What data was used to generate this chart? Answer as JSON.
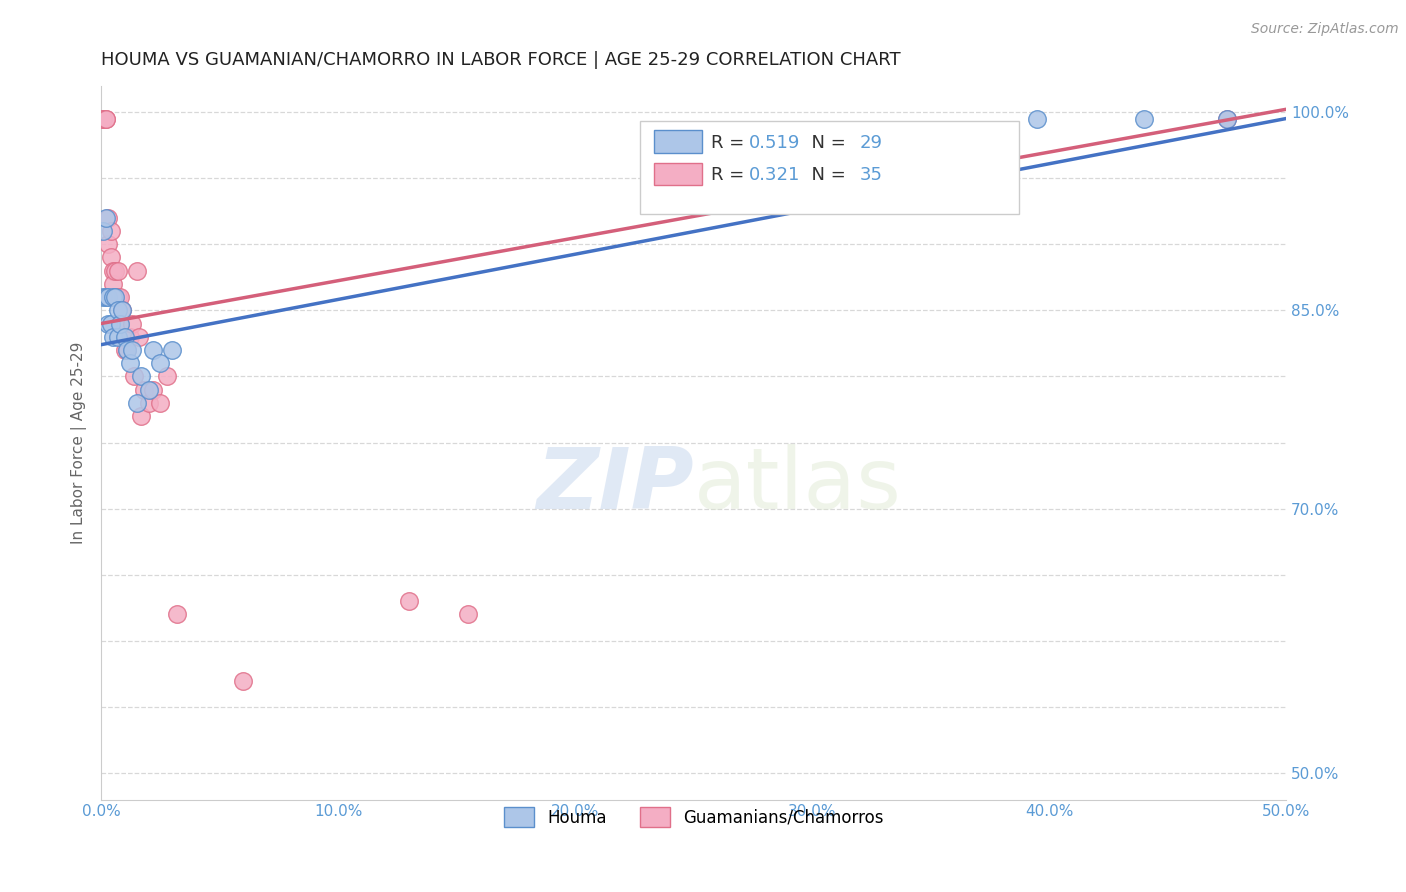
{
  "title": "HOUMA VS GUAMANIAN/CHAMORRO IN LABOR FORCE | AGE 25-29 CORRELATION CHART",
  "source": "Source: ZipAtlas.com",
  "xlabel": "",
  "ylabel": "In Labor Force | Age 25-29",
  "xlim": [
    0.0,
    0.5
  ],
  "ylim": [
    0.48,
    1.02
  ],
  "xticks": [
    0.0,
    0.1,
    0.2,
    0.3,
    0.4,
    0.5
  ],
  "xticklabels": [
    "0.0%",
    "10.0%",
    "20.0%",
    "30.0%",
    "40.0%",
    "50.0%"
  ],
  "yticks": [
    0.5,
    0.55,
    0.6,
    0.65,
    0.7,
    0.75,
    0.8,
    0.85,
    0.9,
    0.95,
    1.0
  ],
  "yticklabels": [
    "50.0%",
    "",
    "",
    "",
    "70.0%",
    "",
    "",
    "85.0%",
    "",
    "",
    "100.0%"
  ],
  "houma_R": 0.519,
  "houma_N": 29,
  "guam_R": 0.321,
  "guam_N": 35,
  "houma_color": "#adc6e8",
  "guam_color": "#f4aec4",
  "houma_edge_color": "#5b8fcc",
  "guam_edge_color": "#e0708a",
  "houma_line_color": "#4472c4",
  "guam_line_color": "#d45f7a",
  "legend_labels": [
    "Houma",
    "Guamanians/Chamorros"
  ],
  "houma_line": [
    0.0,
    0.824,
    0.5,
    0.995
  ],
  "guam_line": [
    0.0,
    0.84,
    0.5,
    1.002
  ],
  "houma_x": [
    0.001,
    0.001,
    0.002,
    0.002,
    0.003,
    0.003,
    0.004,
    0.005,
    0.005,
    0.006,
    0.007,
    0.007,
    0.008,
    0.009,
    0.01,
    0.011,
    0.012,
    0.013,
    0.015,
    0.017,
    0.02,
    0.022,
    0.025,
    0.03,
    0.395,
    0.44,
    0.475
  ],
  "houma_y": [
    0.86,
    0.91,
    0.86,
    0.92,
    0.86,
    0.84,
    0.84,
    0.86,
    0.83,
    0.86,
    0.83,
    0.85,
    0.84,
    0.85,
    0.83,
    0.82,
    0.81,
    0.82,
    0.78,
    0.8,
    0.79,
    0.82,
    0.81,
    0.82,
    0.995,
    0.995,
    0.995
  ],
  "guam_x": [
    0.001,
    0.001,
    0.002,
    0.002,
    0.003,
    0.003,
    0.004,
    0.004,
    0.005,
    0.005,
    0.006,
    0.006,
    0.007,
    0.007,
    0.008,
    0.008,
    0.009,
    0.01,
    0.011,
    0.012,
    0.013,
    0.014,
    0.015,
    0.016,
    0.017,
    0.018,
    0.02,
    0.022,
    0.025,
    0.028,
    0.032,
    0.06,
    0.13,
    0.155,
    0.475
  ],
  "guam_y": [
    0.995,
    0.995,
    0.995,
    0.995,
    0.9,
    0.92,
    0.89,
    0.91,
    0.88,
    0.87,
    0.86,
    0.88,
    0.86,
    0.88,
    0.86,
    0.84,
    0.85,
    0.82,
    0.82,
    0.83,
    0.84,
    0.8,
    0.88,
    0.83,
    0.77,
    0.79,
    0.78,
    0.79,
    0.78,
    0.8,
    0.62,
    0.57,
    0.63,
    0.62,
    0.995
  ],
  "watermark_zip": "ZIP",
  "watermark_atlas": "atlas",
  "grid_color": "#d8d8d8"
}
